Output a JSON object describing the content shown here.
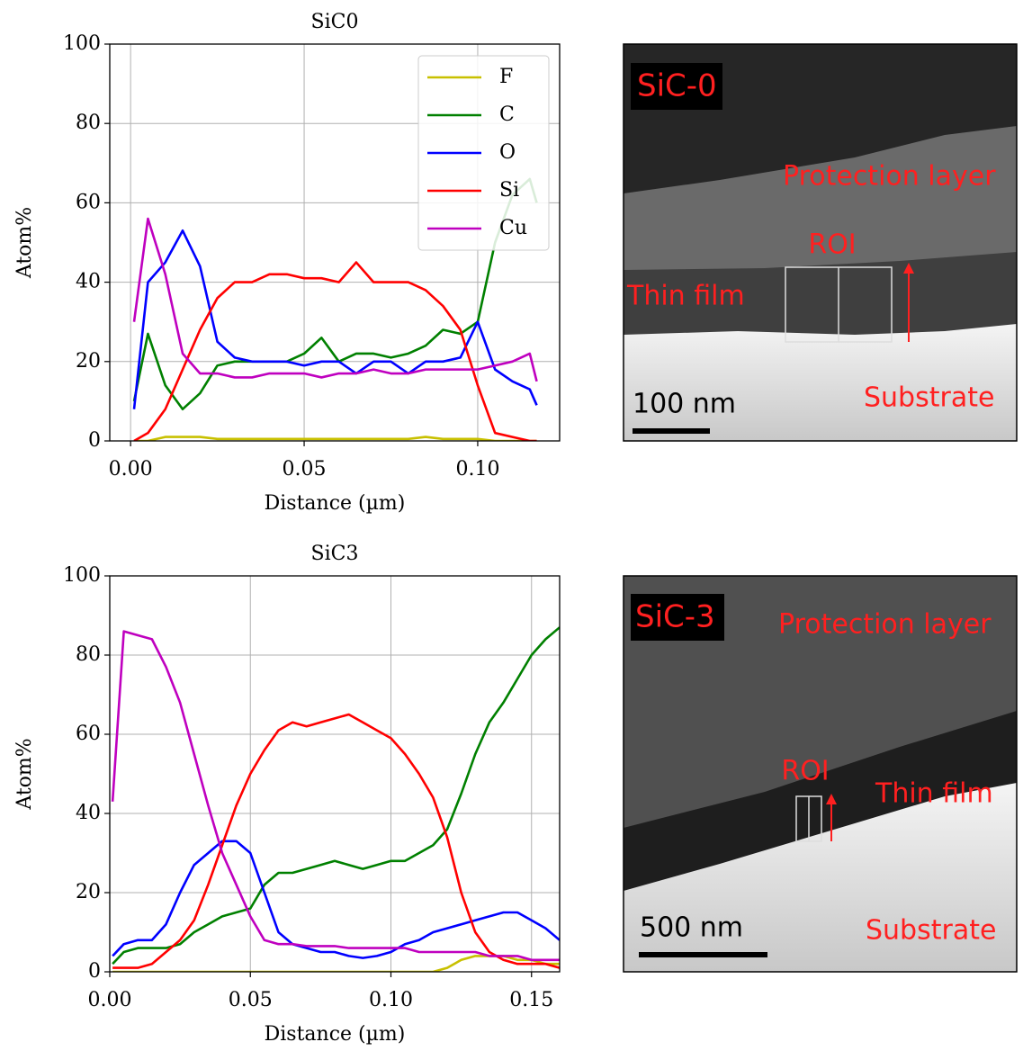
{
  "chart_data": [
    {
      "type": "line",
      "title": "SiC0",
      "x_label": "Distance (µm)",
      "y_label": "Atom%",
      "x": [
        0.001,
        0.005,
        0.01,
        0.015,
        0.02,
        0.025,
        0.03,
        0.035,
        0.04,
        0.045,
        0.05,
        0.055,
        0.06,
        0.065,
        0.07,
        0.075,
        0.08,
        0.085,
        0.09,
        0.095,
        0.1,
        0.105,
        0.11,
        0.115,
        0.117
      ],
      "series": [
        {
          "name": "F",
          "color": "#c8c000",
          "values": [
            0,
            0,
            1,
            1,
            1,
            0.5,
            0.5,
            0.5,
            0.5,
            0.5,
            0.5,
            0.5,
            0.5,
            0.5,
            0.5,
            0.5,
            0.5,
            1,
            0.5,
            0.5,
            0.5,
            0,
            0,
            0,
            0
          ]
        },
        {
          "name": "C",
          "color": "#008000",
          "values": [
            10,
            27,
            14,
            8,
            12,
            19,
            20,
            20,
            20,
            20,
            22,
            26,
            20,
            22,
            22,
            21,
            22,
            24,
            28,
            27,
            30,
            50,
            62,
            66,
            60
          ]
        },
        {
          "name": "O",
          "color": "#0000ff",
          "values": [
            8,
            40,
            45,
            53,
            44,
            25,
            21,
            20,
            20,
            20,
            19,
            20,
            20,
            17,
            20,
            20,
            17,
            20,
            20,
            21,
            30,
            18,
            15,
            13,
            9
          ]
        },
        {
          "name": "Si",
          "color": "#ff0000",
          "values": [
            0,
            2,
            8,
            18,
            28,
            36,
            40,
            40,
            42,
            42,
            41,
            41,
            40,
            45,
            40,
            40,
            40,
            38,
            34,
            28,
            14,
            2,
            1,
            0,
            0
          ]
        },
        {
          "name": "Cu",
          "color": "#bf00bf",
          "values": [
            30,
            56,
            42,
            22,
            17,
            17,
            16,
            16,
            17,
            17,
            17,
            16,
            17,
            17,
            18,
            17,
            17,
            18,
            18,
            18,
            18,
            19,
            20,
            22,
            15
          ]
        }
      ],
      "xlim": [
        -0.006,
        0.1236
      ],
      "ylim": [
        0,
        100
      ],
      "xticks": [
        {
          "value": 0,
          "label": "0.00"
        },
        {
          "value": 0.05,
          "label": "0.05"
        },
        {
          "value": 0.1,
          "label": "0.10"
        }
      ],
      "yticks": [
        0,
        20,
        40,
        60,
        80,
        100
      ],
      "grid": true,
      "legend": "upper right"
    },
    {
      "type": "line",
      "title": "SiC3",
      "x_label": "Distance (µm)",
      "y_label": "Atom%",
      "x": [
        0.001,
        0.005,
        0.01,
        0.015,
        0.02,
        0.025,
        0.03,
        0.035,
        0.04,
        0.045,
        0.05,
        0.055,
        0.06,
        0.065,
        0.07,
        0.075,
        0.08,
        0.085,
        0.09,
        0.095,
        0.1,
        0.105,
        0.11,
        0.115,
        0.12,
        0.125,
        0.13,
        0.135,
        0.14,
        0.145,
        0.15,
        0.155,
        0.16
      ],
      "series": [
        {
          "name": "F",
          "color": "#c8c000",
          "values": [
            0,
            0,
            0,
            0,
            0,
            0,
            0,
            0,
            0,
            0,
            0,
            0,
            0,
            0,
            0,
            0,
            0,
            0,
            0,
            0,
            0,
            0,
            0,
            0,
            1,
            3,
            4,
            4,
            4,
            3,
            3,
            2,
            2
          ]
        },
        {
          "name": "C",
          "color": "#008000",
          "values": [
            2,
            5,
            6,
            6,
            6,
            7,
            10,
            12,
            14,
            15,
            16,
            22,
            25,
            25,
            26,
            27,
            28,
            27,
            26,
            27,
            28,
            28,
            30,
            32,
            36,
            45,
            55,
            63,
            68,
            74,
            80,
            84,
            87
          ]
        },
        {
          "name": "O",
          "color": "#0000ff",
          "values": [
            4,
            7,
            8,
            8,
            12,
            20,
            27,
            30,
            33,
            33,
            30,
            20,
            10,
            7,
            6,
            5,
            5,
            4,
            3.5,
            4,
            5,
            7,
            8,
            10,
            11,
            12,
            13,
            14,
            15,
            15,
            13,
            11,
            8
          ]
        },
        {
          "name": "Si",
          "color": "#ff0000",
          "values": [
            1,
            1,
            1,
            2,
            5,
            8,
            13,
            22,
            32,
            42,
            50,
            56,
            61,
            63,
            62,
            63,
            64,
            65,
            63,
            61,
            59,
            55,
            50,
            44,
            34,
            20,
            10,
            5,
            3,
            2,
            2,
            2,
            1
          ]
        },
        {
          "name": "Cu",
          "color": "#bf00bf",
          "values": [
            43,
            86,
            85,
            84,
            77,
            68,
            55,
            42,
            30,
            22,
            14,
            8,
            7,
            7,
            6.5,
            6.5,
            6.5,
            6,
            6,
            6,
            6,
            6,
            5,
            5,
            5,
            5,
            5,
            4,
            4,
            4,
            3,
            3,
            3
          ]
        }
      ],
      "xlim": [
        0,
        0.16
      ],
      "ylim": [
        0,
        100
      ],
      "xticks": [
        {
          "value": 0,
          "label": "0.00"
        },
        {
          "value": 0.05,
          "label": "0.05"
        },
        {
          "value": 0.1,
          "label": "0.10"
        },
        {
          "value": 0.15,
          "label": "0.15"
        }
      ],
      "yticks": [
        0,
        20,
        40,
        60,
        80,
        100
      ],
      "grid": true
    }
  ],
  "images": [
    {
      "label": "SiC-0",
      "annotations": [
        "Protection layer",
        "ROI",
        "Thin film",
        "Substrate"
      ],
      "scale_bar": "100 nm"
    },
    {
      "label": "SiC-3",
      "annotations": [
        "Protection layer",
        "ROI",
        "Thin film",
        "Substrate"
      ],
      "scale_bar": "500 nm"
    }
  ]
}
